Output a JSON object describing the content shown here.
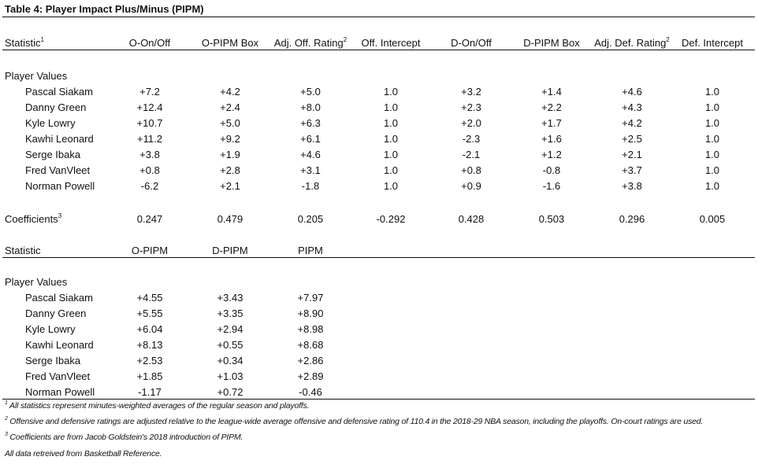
{
  "title": "Table 4: Player Impact Plus/Minus (PIPM)",
  "table1": {
    "headers": [
      {
        "text": "Statistic",
        "sup": "1"
      },
      {
        "text": "O-On/Off",
        "sup": ""
      },
      {
        "text": "O-PIPM Box",
        "sup": ""
      },
      {
        "text": "Adj. Off. Rating",
        "sup": "2"
      },
      {
        "text": "Off. Intercept",
        "sup": ""
      },
      {
        "text": "D-On/Off",
        "sup": ""
      },
      {
        "text": "D-PIPM Box",
        "sup": ""
      },
      {
        "text": "Adj. Def. Rating",
        "sup": "2"
      },
      {
        "text": "Def. Intercept",
        "sup": ""
      }
    ],
    "section_label": "Player Values",
    "rows": [
      {
        "player": "Pascal Siakam",
        "values": [
          "+7.2",
          "+4.2",
          "+5.0",
          "1.0",
          "+3.2",
          "+1.4",
          "+4.6",
          "1.0"
        ]
      },
      {
        "player": "Danny Green",
        "values": [
          "+12.4",
          "+2.4",
          "+8.0",
          "1.0",
          "+2.3",
          "+2.2",
          "+4.3",
          "1.0"
        ]
      },
      {
        "player": "Kyle Lowry",
        "values": [
          "+10.7",
          "+5.0",
          "+6.3",
          "1.0",
          "+2.0",
          "+1.7",
          "+4.2",
          "1.0"
        ]
      },
      {
        "player": "Kawhi Leonard",
        "values": [
          "+11.2",
          "+9.2",
          "+6.1",
          "1.0",
          "-2.3",
          "+1.6",
          "+2.5",
          "1.0"
        ]
      },
      {
        "player": "Serge Ibaka",
        "values": [
          "+3.8",
          "+1.9",
          "+4.6",
          "1.0",
          "-2.1",
          "+1.2",
          "+2.1",
          "1.0"
        ]
      },
      {
        "player": "Fred VanVleet",
        "values": [
          "+0.8",
          "+2.8",
          "+3.1",
          "1.0",
          "+0.8",
          "-0.8",
          "+3.7",
          "1.0"
        ]
      },
      {
        "player": "Norman Powell",
        "values": [
          "-6.2",
          "+2.1",
          "-1.8",
          "1.0",
          "+0.9",
          "-1.6",
          "+3.8",
          "1.0"
        ]
      }
    ],
    "coefficients": {
      "label": "Coefficients",
      "sup": "3",
      "values": [
        "0.247",
        "0.479",
        "0.205",
        "-0.292",
        "0.428",
        "0.503",
        "0.296",
        "0.005"
      ]
    }
  },
  "table2": {
    "headers": [
      {
        "text": "Statistic",
        "sup": ""
      },
      {
        "text": "O-PIPM",
        "sup": ""
      },
      {
        "text": "D-PIPM",
        "sup": ""
      },
      {
        "text": "PIPM",
        "sup": ""
      }
    ],
    "section_label": "Player Values",
    "rows": [
      {
        "player": "Pascal Siakam",
        "values": [
          "+4.55",
          "+3.43",
          "+7.97"
        ]
      },
      {
        "player": "Danny Green",
        "values": [
          "+5.55",
          "+3.35",
          "+8.90"
        ]
      },
      {
        "player": "Kyle Lowry",
        "values": [
          "+6.04",
          "+2.94",
          "+8.98"
        ]
      },
      {
        "player": "Kawhi Leonard",
        "values": [
          "+8.13",
          "+0.55",
          "+8.68"
        ]
      },
      {
        "player": "Serge Ibaka",
        "values": [
          "+2.53",
          "+0.34",
          "+2.86"
        ]
      },
      {
        "player": "Fred VanVleet",
        "values": [
          "+1.85",
          "+1.03",
          "+2.89"
        ]
      },
      {
        "player": "Norman Powell",
        "values": [
          "-1.17",
          "+0.72",
          "-0.46"
        ]
      }
    ]
  },
  "footnotes": [
    {
      "sup": "1",
      "text": "All statistics represent minutes-weighted averages of the regular season and playoffs."
    },
    {
      "sup": "2",
      "text": "Offensive and defensive ratings are adjusted relative to the league-wide average offensive and defensive rating of 110.4 in the 2018-29 NBA season, including the playoffs. On-court ratings are used."
    },
    {
      "sup": "3",
      "text": "Coefficients are from Jacob Goldstein's 2018 introduction of PIPM."
    },
    {
      "sup": "",
      "text": "All data retreived from Basketball Reference."
    }
  ]
}
